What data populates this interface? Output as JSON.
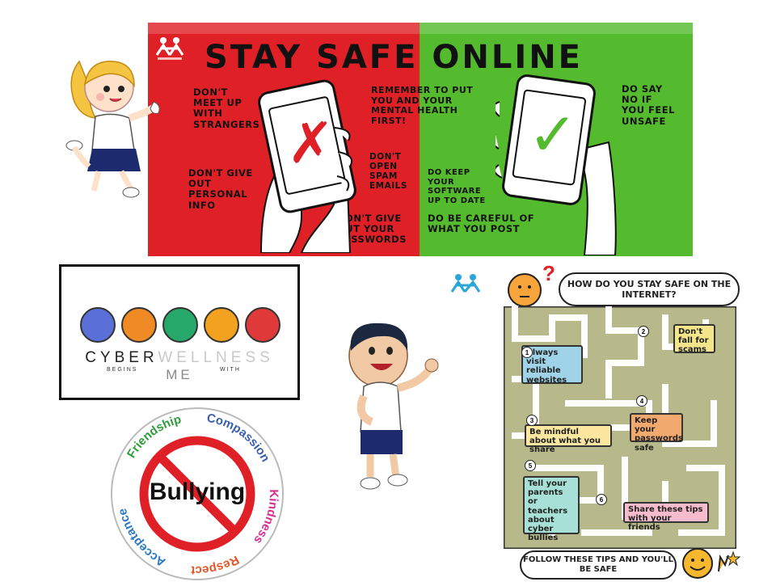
{
  "stay_safe_poster": {
    "title": "STAY SAFE ONLINE",
    "red_side": {
      "tips": [
        "DON'T MEET UP WITH STRANGERS",
        "DON'T GIVE OUT PERSONAL INFO",
        "DON'T OPEN SPAM EMAILS",
        "DON'T GIVE OUT YOUR PASSWORDS"
      ],
      "phone_mark": "✗"
    },
    "middle": "REMEMBER TO PUT YOU AND YOUR MENTAL HEALTH FIRST!",
    "green_side": {
      "tips": [
        "DO SAY NO IF YOU FEEL UNSAFE",
        "DO KEEP YOUR SOFTWARE UP TO DATE",
        "DO BE CAREFUL OF WHAT YOU POST"
      ],
      "phone_mark": "✓"
    },
    "colors": {
      "red": "#e02027",
      "green": "#55bb2e"
    }
  },
  "cyber_wellness": {
    "word_cyber": "CYBER",
    "word_wellness": "WELLNESS",
    "sub_left": "BEGINS",
    "sub_me": "ME",
    "sub_right": "WITH",
    "circle_colors": [
      "#5a6fd8",
      "#f08a24",
      "#27a86b",
      "#f3a21f",
      "#e0393a"
    ]
  },
  "bullying_badge": {
    "center_word": "Bullying",
    "values": [
      {
        "word": "Friendship",
        "color": "#2f9e3a"
      },
      {
        "word": "Compassion",
        "color": "#3b5fb0"
      },
      {
        "word": "Kindness",
        "color": "#d62f8f"
      },
      {
        "word": "Respect",
        "color": "#e3572a"
      },
      {
        "word": "Acceptance",
        "color": "#2878c8"
      }
    ]
  },
  "maze_poster": {
    "question": "HOW DO YOU STAY SAFE ON THE INTERNET?",
    "tips": [
      {
        "num": "1",
        "text": "Always visit reliable websites",
        "color": "#9ed3e8"
      },
      {
        "num": "2",
        "text": "Don't fall for scams",
        "color": "#f3e58a"
      },
      {
        "num": "3",
        "text": "Be mindful about what you share",
        "color": "#fbe7a0"
      },
      {
        "num": "4",
        "text": "Keep your passwords safe",
        "color": "#f2a96e"
      },
      {
        "num": "5",
        "text": "Tell your parents or teachers about cyber bullies",
        "color": "#a7e0d6"
      },
      {
        "num": "6",
        "text": "Share these tips with your friends",
        "color": "#f6bccd"
      }
    ],
    "footer": "FOLLOW THESE TIPS AND YOU'LL BE SAFE",
    "question_mark": "?"
  }
}
